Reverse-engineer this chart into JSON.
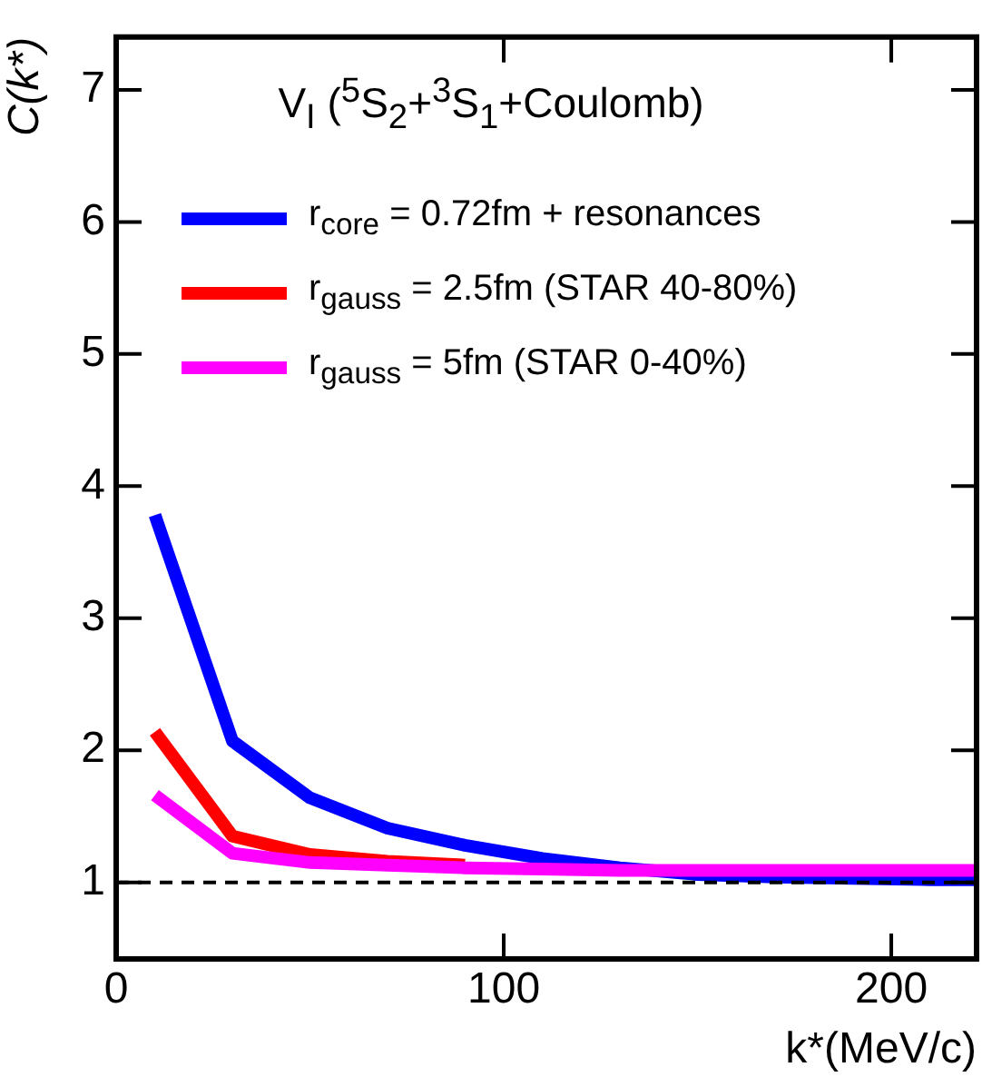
{
  "chart_data": {
    "type": "line",
    "title": "V$_{I}$ ($^{5}$S$_{2}$+$^{3}$S$_{1}$+Coulomb)",
    "xlabel": "k*(MeV/c)",
    "ylabel": "C(k*)",
    "x": [
      10,
      30,
      50,
      70,
      90,
      110,
      130,
      150,
      170,
      190,
      210,
      222
    ],
    "series": [
      {
        "name": "r$_{core}$ = 0.72fm + resonances",
        "color": "#0000ff",
        "values": [
          3.78,
          2.07,
          1.64,
          1.41,
          1.28,
          1.18,
          1.11,
          1.06,
          1.04,
          1.03,
          1.02,
          1.02
        ]
      },
      {
        "name": "r$_{gauss}$ = 2.5fm (STAR 40-80%)",
        "color": "#ff0000",
        "values": [
          2.14,
          1.35,
          1.21,
          1.16,
          1.13,
          null,
          null,
          null,
          null,
          null,
          null,
          null
        ]
      },
      {
        "name": "r$_{gauss}$ = 5fm (STAR 0-40%)",
        "color": "#ff00ff",
        "values": [
          1.66,
          1.22,
          1.15,
          1.13,
          1.11,
          1.1,
          1.09,
          1.09,
          1.09,
          1.09,
          1.09,
          1.09
        ]
      }
    ],
    "xlim": [
      0,
      222
    ],
    "xticks": [
      0,
      100,
      200
    ],
    "ylim": [
      0.42,
      7.4
    ],
    "yticks": [
      1,
      2,
      3,
      4,
      5,
      6,
      7
    ],
    "ref_lines": [
      {
        "axis": "y",
        "value": 1,
        "color": "#000000",
        "line_style": "dashed"
      }
    ],
    "legend": "top",
    "grid": false,
    "marker": "none",
    "line_style": "solid"
  }
}
